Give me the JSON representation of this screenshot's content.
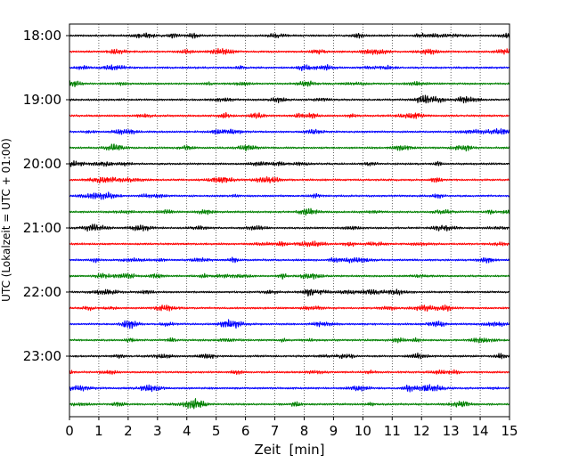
{
  "chart_data": {
    "type": "line",
    "title": "",
    "xlabel": "Zeit  [min]",
    "ylabel": "UTC (Lokalzeit = UTC + 01:00)",
    "xlim": [
      0,
      15
    ],
    "x_ticks": [
      0,
      1,
      2,
      3,
      4,
      5,
      6,
      7,
      8,
      9,
      10,
      11,
      12,
      13,
      14,
      15
    ],
    "x_tick_labels": [
      "0",
      "1",
      "2",
      "3",
      "4",
      "5",
      "6",
      "7",
      "8",
      "9",
      "10",
      "11",
      "12",
      "13",
      "14",
      "15"
    ],
    "y_tick_labels": [
      "18:00",
      "19:00",
      "20:00",
      "21:00",
      "22:00",
      "23:00"
    ],
    "grid": "vertical dotted lines at each minute",
    "trace_start": "18:00",
    "trace_interval_minutes": 15,
    "trace_count": 24,
    "trace_colors": [
      "#000000",
      "#ff0000",
      "#0000ff",
      "#008000"
    ],
    "signal": "continuous seismic noise, no distinct events"
  }
}
